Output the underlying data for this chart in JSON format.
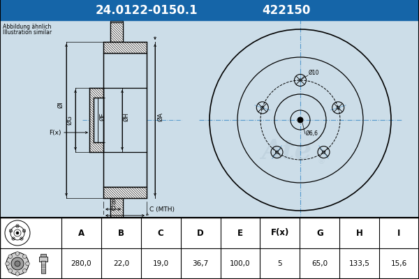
{
  "title_part": "24.0122-0150.1",
  "title_num": "422150",
  "header_bg": "#1565a8",
  "header_text_color": "#ffffff",
  "body_bg": "#ccdde8",
  "table_bg": "#ffffff",
  "note_text": [
    "Abbildung ähnlich",
    "Illustration similar"
  ],
  "columns": [
    "A",
    "B",
    "C",
    "D",
    "E",
    "F(x)",
    "G",
    "H",
    "I"
  ],
  "values": [
    "280,0",
    "22,0",
    "19,0",
    "36,7",
    "100,0",
    "5",
    "65,0",
    "133,5",
    "15,6"
  ],
  "dim_color": "#000000",
  "line_color": "#000000",
  "hatch_color": "#000000",
  "center_line_color": "#5599cc",
  "watermark_color": "#b8ccd8"
}
